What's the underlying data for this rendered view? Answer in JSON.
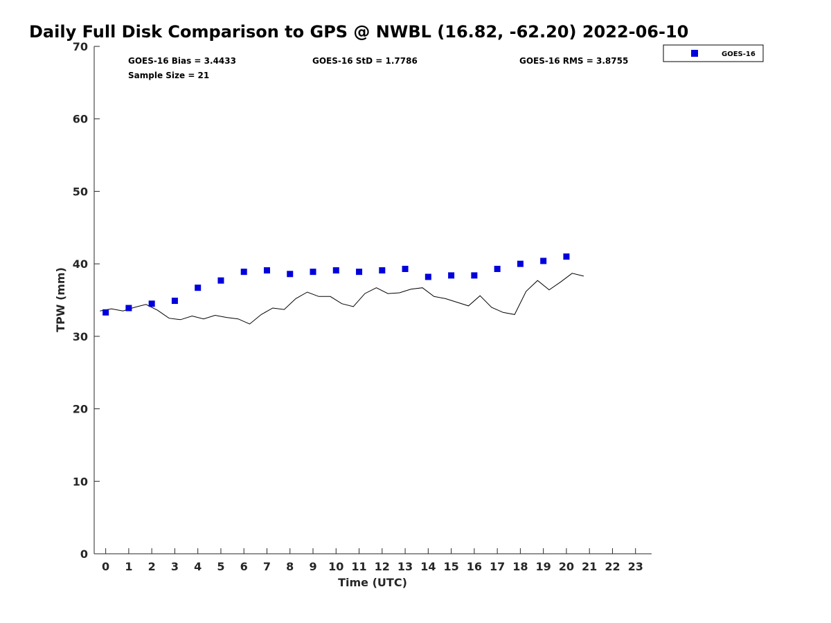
{
  "chart_data": {
    "type": "scatter",
    "title": "Daily Full Disk Comparison to GPS @ NWBL (16.82, -62.20) 2022-06-10",
    "xlabel": "Time (UTC)",
    "ylabel": "TPW (mm)",
    "xlim": [
      -0.5,
      23.7
    ],
    "ylim": [
      0,
      70
    ],
    "x_ticks": [
      "0",
      "1",
      "2",
      "3",
      "4",
      "5",
      "6",
      "7",
      "8",
      "9",
      "10",
      "11",
      "12",
      "13",
      "14",
      "15",
      "16",
      "17",
      "18",
      "19",
      "20",
      "21",
      "22",
      "23"
    ],
    "y_ticks": [
      "0",
      "10",
      "20",
      "30",
      "40",
      "50",
      "60",
      "70"
    ],
    "grid": false,
    "legend_position": "top-right, outside plot",
    "stats": {
      "bias": "GOES-16 Bias = 3.4433",
      "std": "GOES-16 StD = 1.7786",
      "rms": "GOES-16 RMS = 3.8755",
      "sample_size": "Sample Size = 21"
    },
    "series": [
      {
        "name": "GOES-16",
        "style": "square-markers",
        "color": "#0000dd",
        "x": [
          0,
          1,
          2,
          3,
          4,
          5,
          6,
          7,
          8,
          9,
          10,
          11,
          12,
          13,
          14,
          15,
          16,
          17,
          18,
          19,
          20
        ],
        "y": [
          33.3,
          33.9,
          34.5,
          34.9,
          36.7,
          37.7,
          38.9,
          39.1,
          38.6,
          38.9,
          39.1,
          38.9,
          39.1,
          39.3,
          38.2,
          38.4,
          38.4,
          39.3,
          40.0,
          40.4,
          41.0
        ]
      },
      {
        "style": "line",
        "color": "#000000",
        "x": [
          -0.25,
          0.25,
          0.75,
          1.25,
          1.75,
          2.25,
          2.75,
          3.25,
          3.75,
          4.25,
          4.75,
          5.25,
          5.75,
          6.25,
          6.75,
          7.25,
          7.75,
          8.25,
          8.75,
          9.25,
          9.75,
          10.25,
          10.75,
          11.25,
          11.75,
          12.25,
          12.75,
          13.25,
          13.75,
          14.25,
          14.75,
          15.25,
          15.75,
          16.25,
          16.75,
          17.25,
          17.75,
          18.25,
          18.75,
          19.25,
          19.75,
          20.25,
          20.75
        ],
        "y": [
          33.5,
          33.8,
          33.5,
          34.0,
          34.4,
          33.6,
          32.5,
          32.3,
          32.8,
          32.4,
          32.9,
          32.6,
          32.4,
          31.7,
          33.0,
          33.9,
          33.7,
          35.2,
          36.1,
          35.5,
          35.5,
          34.5,
          34.1,
          35.9,
          36.7,
          35.9,
          36.0,
          36.5,
          36.7,
          35.5,
          35.2,
          34.7,
          34.2,
          35.6,
          34.0,
          33.3,
          33.0,
          36.2,
          37.7,
          36.4,
          37.5,
          38.7,
          38.3
        ]
      }
    ]
  }
}
